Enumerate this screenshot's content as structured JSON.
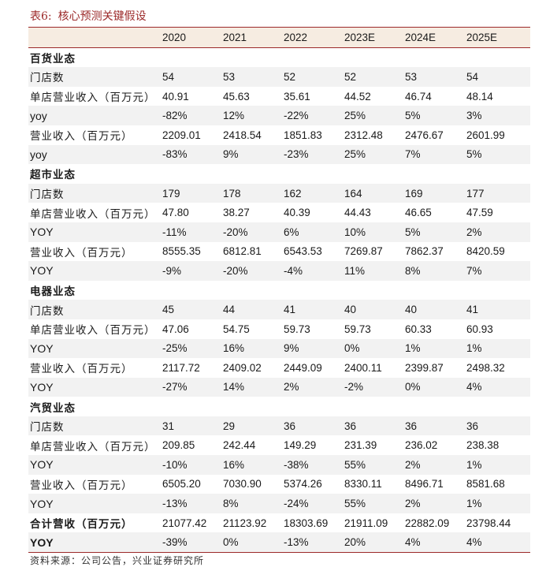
{
  "title": {
    "number": "表6:",
    "text": "核心预测关键假设"
  },
  "table": {
    "headers": [
      "",
      "2020",
      "2021",
      "2022",
      "2023E",
      "2024E",
      "2025E"
    ],
    "rows": [
      {
        "type": "section",
        "label": "百货业态",
        "values": [
          "",
          "",
          "",
          "",
          "",
          ""
        ]
      },
      {
        "type": "data",
        "label": "门店数",
        "values": [
          "54",
          "53",
          "52",
          "52",
          "53",
          "54"
        ]
      },
      {
        "type": "data",
        "label": "单店营业收入（百万元）",
        "values": [
          "40.91",
          "45.63",
          "35.61",
          "44.52",
          "46.74",
          "48.14"
        ]
      },
      {
        "type": "data",
        "label": "yoy",
        "values": [
          "-82%",
          "12%",
          "-22%",
          "25%",
          "5%",
          "3%"
        ]
      },
      {
        "type": "data",
        "label": "营业收入（百万元）",
        "values": [
          "2209.01",
          "2418.54",
          "1851.83",
          "2312.48",
          "2476.67",
          "2601.99"
        ]
      },
      {
        "type": "data",
        "label": "yoy",
        "values": [
          "-83%",
          "9%",
          "-23%",
          "25%",
          "7%",
          "5%"
        ]
      },
      {
        "type": "section",
        "label": "超市业态",
        "values": [
          "",
          "",
          "",
          "",
          "",
          ""
        ]
      },
      {
        "type": "data",
        "label": "门店数",
        "values": [
          "179",
          "178",
          "162",
          "164",
          "169",
          "177"
        ]
      },
      {
        "type": "data",
        "label": "单店营业收入（百万元）",
        "values": [
          "47.80",
          "38.27",
          "40.39",
          "44.43",
          "46.65",
          "47.59"
        ]
      },
      {
        "type": "data",
        "label": "YOY",
        "values": [
          "-11%",
          "-20%",
          "6%",
          "10%",
          "5%",
          "2%"
        ]
      },
      {
        "type": "data",
        "label": "营业收入（百万元）",
        "values": [
          "8555.35",
          "6812.81",
          "6543.53",
          "7269.87",
          "7862.37",
          "8420.59"
        ]
      },
      {
        "type": "data",
        "label": "YOY",
        "values": [
          "-9%",
          "-20%",
          "-4%",
          "11%",
          "8%",
          "7%"
        ]
      },
      {
        "type": "section",
        "label": "电器业态",
        "values": [
          "",
          "",
          "",
          "",
          "",
          ""
        ]
      },
      {
        "type": "data",
        "label": "门店数",
        "values": [
          "45",
          "44",
          "41",
          "40",
          "40",
          "41"
        ]
      },
      {
        "type": "data",
        "label": "单店营业收入（百万元）",
        "values": [
          "47.06",
          "54.75",
          "59.73",
          "59.73",
          "60.33",
          "60.93"
        ]
      },
      {
        "type": "data",
        "label": "YOY",
        "values": [
          "-25%",
          "16%",
          "9%",
          "0%",
          "1%",
          "1%"
        ]
      },
      {
        "type": "data",
        "label": "营业收入（百万元）",
        "values": [
          "2117.72",
          "2409.02",
          "2449.09",
          "2400.11",
          "2399.87",
          "2498.32"
        ]
      },
      {
        "type": "data",
        "label": "YOY",
        "values": [
          "-27%",
          "14%",
          "2%",
          "-2%",
          "0%",
          "4%"
        ]
      },
      {
        "type": "section",
        "label": "汽贸业态",
        "values": [
          "",
          "",
          "",
          "",
          "",
          ""
        ]
      },
      {
        "type": "data",
        "label": "门店数",
        "values": [
          "31",
          "29",
          "36",
          "36",
          "36",
          "36"
        ]
      },
      {
        "type": "data",
        "label": "单店营业收入（百万元）",
        "values": [
          "209.85",
          "242.44",
          "149.29",
          "231.39",
          "236.02",
          "238.38"
        ]
      },
      {
        "type": "data",
        "label": "YOY",
        "values": [
          "-10%",
          "16%",
          "-38%",
          "55%",
          "2%",
          "1%"
        ]
      },
      {
        "type": "data",
        "label": "营业收入（百万元）",
        "values": [
          "6505.20",
          "7030.90",
          "5374.26",
          "8330.11",
          "8496.71",
          "8581.68"
        ]
      },
      {
        "type": "data",
        "label": "YOY",
        "values": [
          "-13%",
          "8%",
          "-24%",
          "55%",
          "2%",
          "1%"
        ]
      },
      {
        "type": "total",
        "label": "合计营收（百万元）",
        "values": [
          "21077.42",
          "21123.92",
          "18303.69",
          "21911.09",
          "22882.09",
          "23798.44"
        ]
      },
      {
        "type": "grand",
        "label": "YOY",
        "values": [
          "-39%",
          "0%",
          "-13%",
          "20%",
          "4%",
          "4%"
        ]
      }
    ]
  },
  "source": "资料来源：公司公告，兴业证券研究所"
}
